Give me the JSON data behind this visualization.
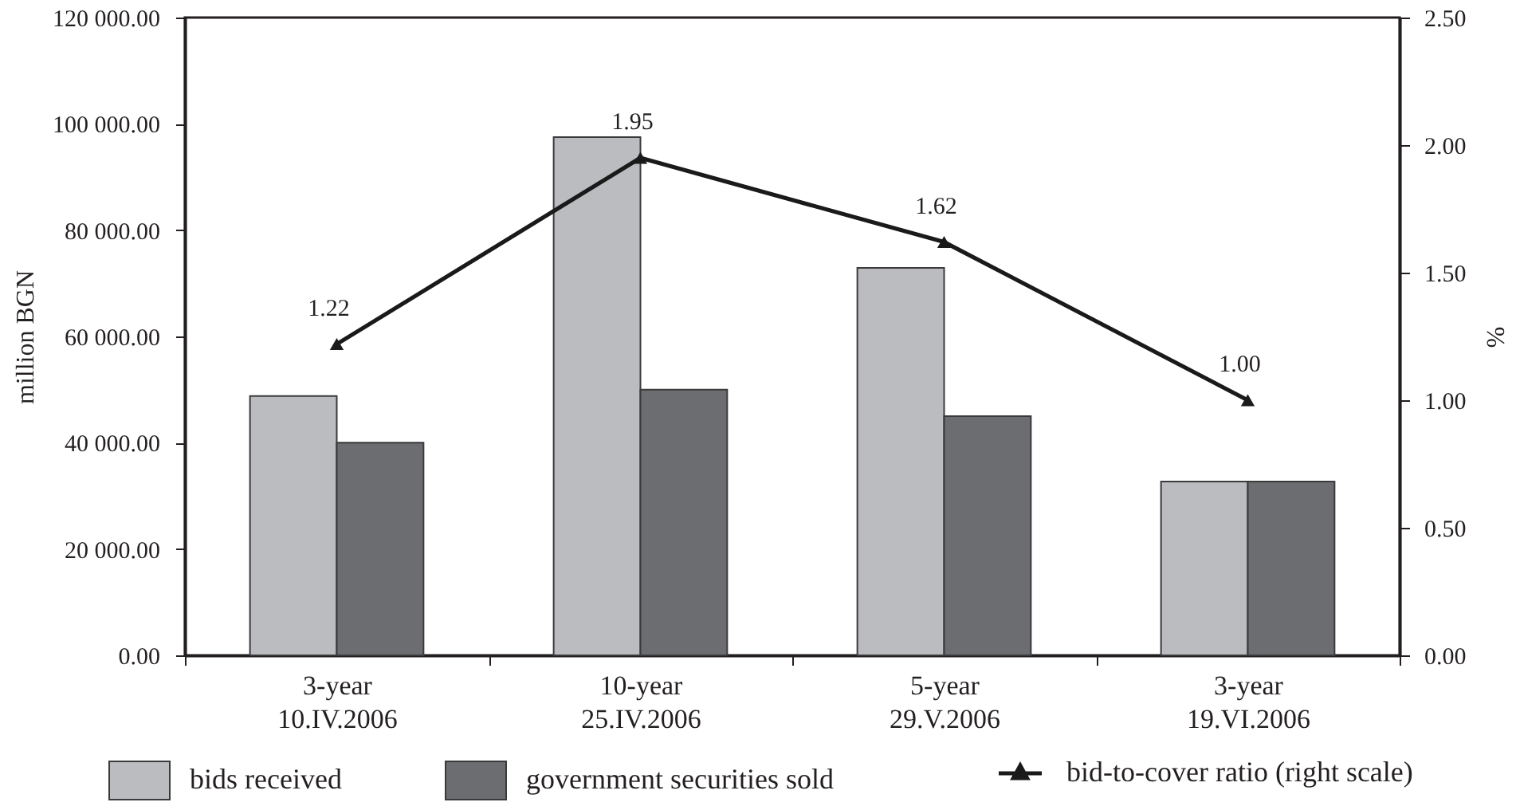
{
  "chart_data": {
    "type": "bar",
    "categories": [
      "3-year\n10.IV.2006",
      "10-year\n25.IV.2006",
      "5-year\n29.V.2006",
      "3-year\n19.VI.2006"
    ],
    "ylabel": "million BGN",
    "y2label": "%",
    "ylim": [
      0,
      120000
    ],
    "yticks": [
      {
        "value": 0,
        "label": "0.00"
      },
      {
        "value": 20000,
        "label": "20 000.00"
      },
      {
        "value": 40000,
        "label": "40 000.00"
      },
      {
        "value": 60000,
        "label": "60 000.00"
      },
      {
        "value": 80000,
        "label": "80 000.00"
      },
      {
        "value": 100000,
        "label": "100 000.00"
      },
      {
        "value": 120000,
        "label": "120 000.00"
      }
    ],
    "y2lim": [
      0,
      2.5
    ],
    "y2ticks": [
      {
        "value": 0,
        "label": "0.00"
      },
      {
        "value": 0.5,
        "label": "0.50"
      },
      {
        "value": 1,
        "label": "1.00"
      },
      {
        "value": 1.5,
        "label": "1.50"
      },
      {
        "value": 2,
        "label": "2.00"
      },
      {
        "value": 2.5,
        "label": "2.50"
      }
    ],
    "series": [
      {
        "name": "bids received",
        "color": "#bbbcc0",
        "values": [
          48800,
          97500,
          72900,
          32700
        ]
      },
      {
        "name": "government securities sold",
        "color": "#6c6d70",
        "values": [
          40000,
          50000,
          45000,
          32700
        ]
      },
      {
        "name": "bid-to-cover ratio (right scale)",
        "type": "line",
        "axis": "y2",
        "color": "#1a1a1a",
        "marker": "triangle",
        "values": [
          1.22,
          1.95,
          1.62,
          1.0
        ],
        "value_labels": [
          "1.22",
          "1.95",
          "1.62",
          "1.00"
        ]
      }
    ],
    "legend": "bottom"
  }
}
